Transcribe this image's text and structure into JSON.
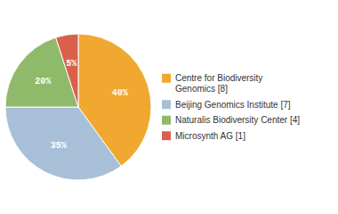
{
  "chart_data": {
    "type": "pie",
    "categories": [
      "Centre for Biodiversity\nGenomics [8]",
      "Beijing Genomics Institute [7]",
      "Naturalis Biodiversity Center [4]",
      "Microsynth AG [1]"
    ],
    "values": [
      40,
      35,
      20,
      5
    ],
    "value_labels": [
      "40%",
      "35%",
      "20%",
      "5%"
    ],
    "colors": [
      "#f0a830",
      "#a8bfd8",
      "#8fba6a",
      "#d9614c"
    ],
    "data_labels": true,
    "legend": "right"
  }
}
